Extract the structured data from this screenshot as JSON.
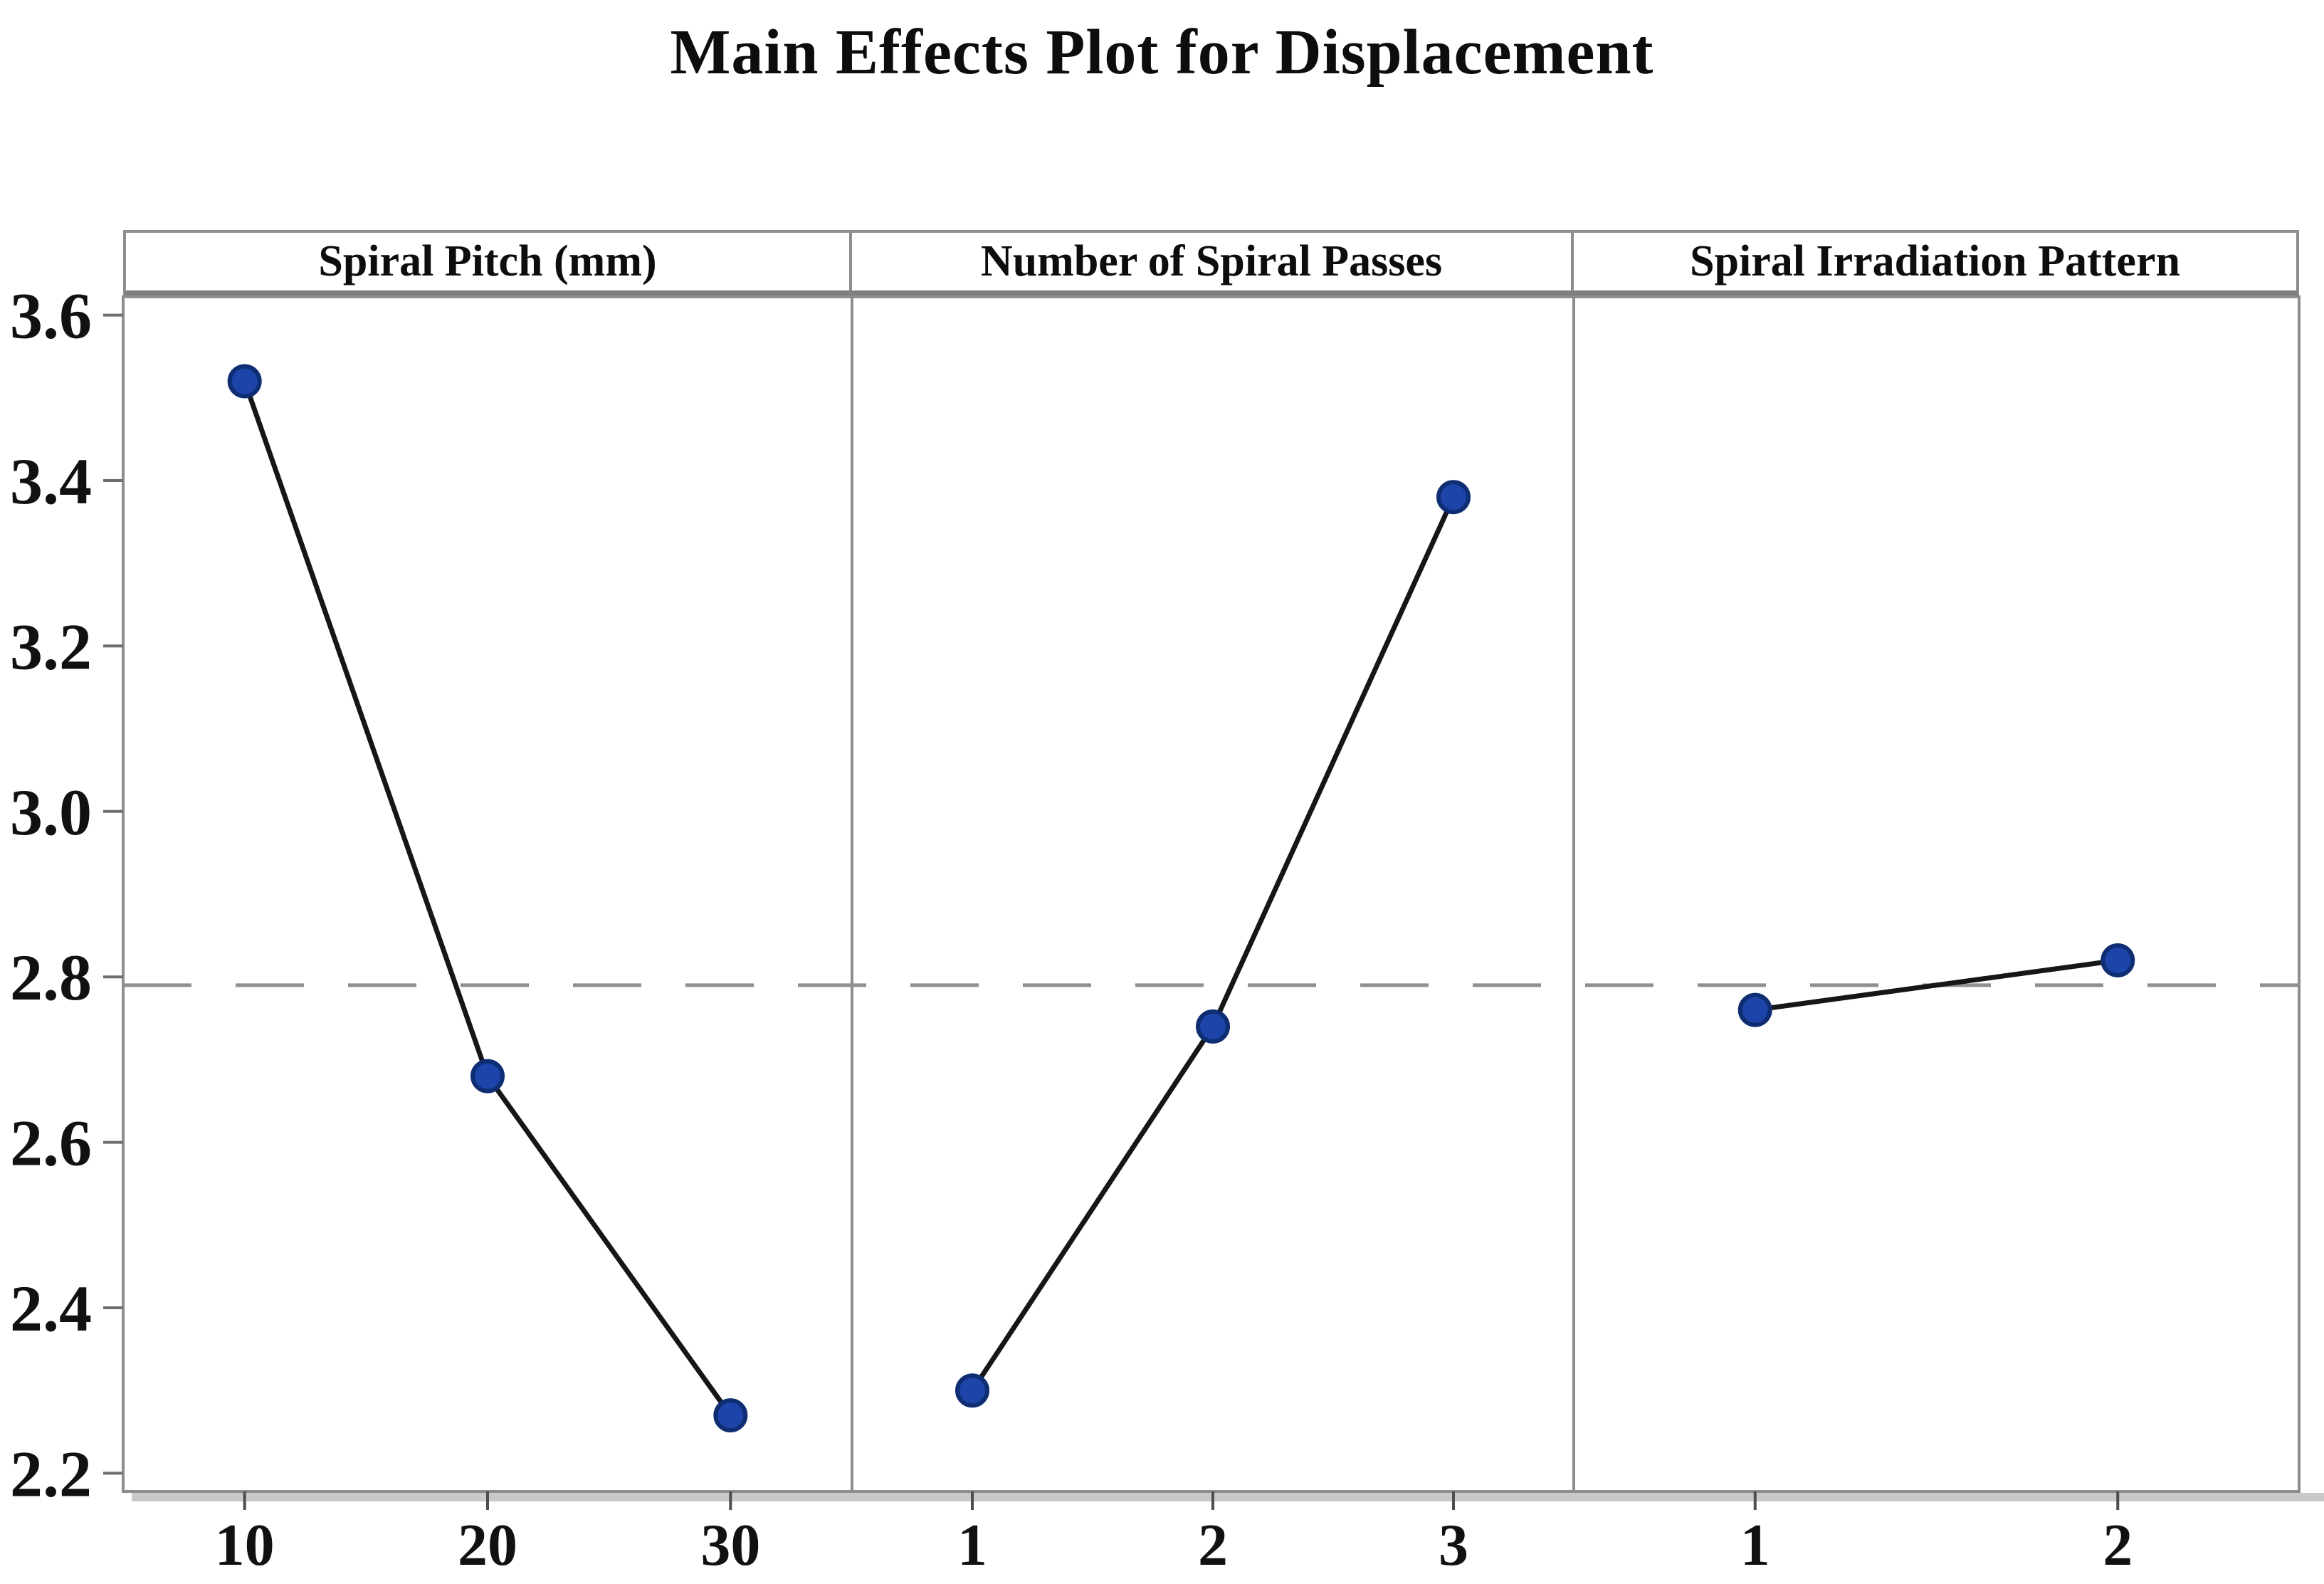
{
  "title": "Main Effects Plot for Displacement",
  "chart_data": {
    "type": "line",
    "title": "Main Effects Plot for Displacement",
    "panels": [
      {
        "title": "Spiral Pitch (mm)",
        "categories": [
          "10",
          "20",
          "30"
        ],
        "values": [
          3.52,
          2.68,
          2.27
        ]
      },
      {
        "title": "Number of Spiral Passes",
        "categories": [
          "1",
          "2",
          "3"
        ],
        "values": [
          2.3,
          2.74,
          3.38
        ]
      },
      {
        "title": "Spiral Irradiation Pattern",
        "categories": [
          "1",
          "2"
        ],
        "values": [
          2.76,
          2.82
        ]
      }
    ],
    "xlabel": "",
    "ylabel": "",
    "yticks": [
      3.6,
      3.4,
      3.2,
      3.0,
      2.8,
      2.6,
      2.4,
      2.2
    ],
    "ylim": [
      2.178,
      3.622
    ],
    "mean_line": 2.79,
    "grid": false,
    "legend": "none",
    "marker": "circle",
    "colors": {
      "marker_fill": "#1c44a9",
      "marker_stroke": "#0e2d72",
      "series_line": "#161616",
      "mean_line": "#8f8f8f",
      "frame": "#8d8d8d",
      "tick_mark": "#6e6e6e",
      "tick_text": "#111111",
      "title_text": "#0d0d0d",
      "shadow": "#c9c9c9"
    }
  }
}
